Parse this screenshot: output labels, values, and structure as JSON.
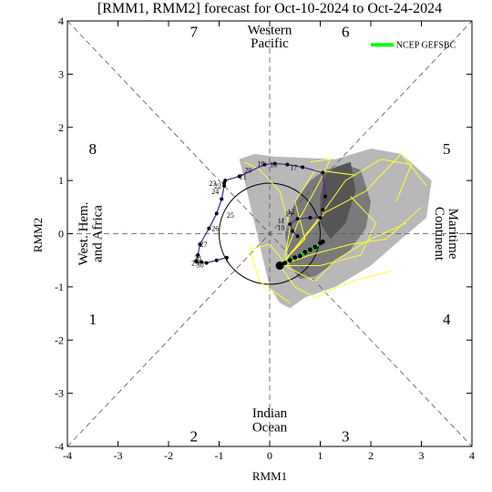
{
  "chart_data": {
    "type": "line",
    "title": "[RMM1, RMM2] forecast for Oct-10-2024 to Oct-24-2024",
    "xlabel": "RMM1",
    "ylabel": "RMM2",
    "xlim": [
      -4,
      4
    ],
    "ylim": [
      -4,
      4
    ],
    "x_ticks": [
      "-4",
      "-3",
      "-2",
      "-1",
      "0",
      "1",
      "2",
      "3",
      "4"
    ],
    "y_ticks": [
      "-4",
      "-3",
      "-2",
      "-1",
      "0",
      "1",
      "2",
      "3",
      "4"
    ],
    "phases": [
      "1",
      "2",
      "3",
      "4",
      "5",
      "6",
      "7",
      "8"
    ],
    "regions": {
      "top_line1": "Western",
      "top_line2": "Pacific",
      "bottom_line1": "Indian",
      "bottom_line2": "Ocean",
      "left_line1": "West. Hem.",
      "left_line2": "and Africa",
      "right_line1": "Maritime",
      "right_line2": "Continent"
    },
    "legend": {
      "label": "NCEP GEFSBC",
      "color": "#00ff00",
      "placement": "top-right"
    },
    "colors": {
      "observed": "#5a2a9a",
      "forecast_mean": "#00ff00",
      "ensemble": "#ffff33",
      "spread_light": "#b8b8b8",
      "spread_dark": "#7a7a7a",
      "spread_darker": "#555555"
    },
    "observed_series": {
      "x": [
        -0.85,
        -1.05,
        -1.25,
        -1.35,
        -1.45,
        -1.42,
        -1.38,
        -1.2,
        -1.05,
        -0.95,
        -0.9,
        -0.9,
        -0.88,
        -0.6,
        -0.1,
        0.1,
        0.35,
        0.65,
        1.05,
        1.1,
        1.05,
        1.0,
        0.8,
        0.55,
        0.4,
        0.45,
        0.55
      ],
      "y": [
        -0.45,
        -0.5,
        -0.55,
        -0.53,
        -0.52,
        -0.4,
        -0.2,
        0.1,
        0.38,
        0.65,
        0.9,
        0.95,
        1.0,
        1.08,
        1.3,
        1.32,
        1.3,
        1.25,
        1.15,
        0.7,
        0.45,
        0.3,
        0.3,
        0.28,
        0.18,
        0.05,
        -0.05
      ]
    },
    "day_labels": [
      {
        "text": "17",
        "x": 0.6,
        "y": 1.25
      },
      {
        "text": "18",
        "x": 0.2,
        "y": 1.3
      },
      {
        "text": "19",
        "x": -0.05,
        "y": 1.32
      },
      {
        "text": "20",
        "x": -0.3,
        "y": 1.2
      },
      {
        "text": "21",
        "x": -0.4,
        "y": 1.08
      },
      {
        "text": "22",
        "x": -0.9,
        "y": 0.9
      },
      {
        "text": "23",
        "x": -1.0,
        "y": 0.95
      },
      {
        "text": "24",
        "x": -0.95,
        "y": 0.8
      },
      {
        "text": "25",
        "x": -0.65,
        "y": 0.35
      },
      {
        "text": "26",
        "x": -0.95,
        "y": 0.1
      },
      {
        "text": "27",
        "x": -1.18,
        "y": -0.2
      },
      {
        "text": "28",
        "x": -1.3,
        "y": -0.45
      },
      {
        "text": "29",
        "x": -1.35,
        "y": -0.55
      },
      {
        "text": "30",
        "x": -1.25,
        "y": -0.58
      },
      {
        "text": "1",
        "x": -0.75,
        "y": -0.48
      },
      {
        "text": "10",
        "x": 0.35,
        "y": 0.12
      },
      {
        "text": "11",
        "x": 0.35,
        "y": 0.25
      },
      {
        "text": "12",
        "x": 0.55,
        "y": 0.42
      },
      {
        "text": "13",
        "x": 0.5,
        "y": 0.38
      }
    ],
    "forecast_mean": {
      "x": [
        0.2,
        0.3,
        0.4,
        0.5,
        0.6,
        0.7,
        0.8,
        0.9,
        1.0,
        1.05
      ],
      "y": [
        -0.6,
        -0.55,
        -0.5,
        -0.45,
        -0.42,
        -0.35,
        -0.3,
        -0.25,
        -0.18,
        -0.15
      ]
    },
    "spread_light": {
      "x": [
        -0.6,
        -0.3,
        0.1,
        1.3,
        2.0,
        2.3,
        2.6,
        3.2,
        3.1,
        2.6,
        2.0,
        1.3,
        0.7,
        0.4,
        0.2,
        0.0,
        -0.1
      ],
      "y": [
        1.4,
        1.5,
        1.45,
        1.4,
        1.6,
        1.55,
        1.5,
        1.0,
        0.3,
        -0.1,
        -0.6,
        -1.0,
        -1.2,
        -1.4,
        -1.3,
        -1.0,
        -0.6
      ]
    },
    "spread_dark": {
      "x": [
        1.1,
        1.5,
        1.8,
        2.0,
        1.9,
        1.6,
        1.2,
        0.9,
        0.6,
        0.4,
        0.3,
        0.5,
        0.8
      ],
      "y": [
        1.2,
        1.3,
        1.2,
        0.6,
        0.1,
        -0.3,
        -0.6,
        -0.8,
        -0.85,
        -0.6,
        0.0,
        0.6,
        1.0
      ]
    },
    "spread_darker": {
      "x": [
        1.3,
        1.6,
        1.7,
        1.5,
        1.2,
        1.0,
        1.0,
        1.1
      ],
      "y": [
        1.25,
        1.35,
        0.8,
        0.2,
        -0.1,
        0.2,
        0.7,
        1.1
      ]
    }
  }
}
